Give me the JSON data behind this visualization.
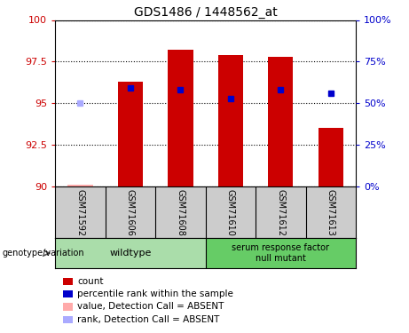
{
  "title": "GDS1486 / 1448562_at",
  "samples": [
    "GSM71592",
    "GSM71606",
    "GSM71608",
    "GSM71610",
    "GSM71612",
    "GSM71613"
  ],
  "n_wildtype": 3,
  "n_mutant": 3,
  "red_bar_values": [
    90.1,
    96.3,
    98.2,
    97.9,
    97.8,
    93.5
  ],
  "blue_dot_values": [
    95.0,
    95.9,
    95.8,
    95.3,
    95.8,
    95.6
  ],
  "is_absent": [
    true,
    false,
    false,
    false,
    false,
    false
  ],
  "ylim_left": [
    90,
    100
  ],
  "ylim_right": [
    0,
    100
  ],
  "yticks_left": [
    90,
    92.5,
    95,
    97.5,
    100
  ],
  "yticks_right": [
    0,
    25,
    50,
    75,
    100
  ],
  "left_color": "#cc0000",
  "right_color": "#0000cc",
  "bar_width": 0.5,
  "wildtype_bg": "#aaddaa",
  "mutant_bg": "#66cc66",
  "sample_area_bg": "#cccccc",
  "genotype_label": "genotype/variation",
  "wildtype_label": "wildtype",
  "mutant_label": "serum response factor\nnull mutant",
  "legend_colors": [
    "#cc0000",
    "#0000cc",
    "#ffaaaa",
    "#aaaaff"
  ],
  "legend_labels": [
    "count",
    "percentile rank within the sample",
    "value, Detection Call = ABSENT",
    "rank, Detection Call = ABSENT"
  ]
}
